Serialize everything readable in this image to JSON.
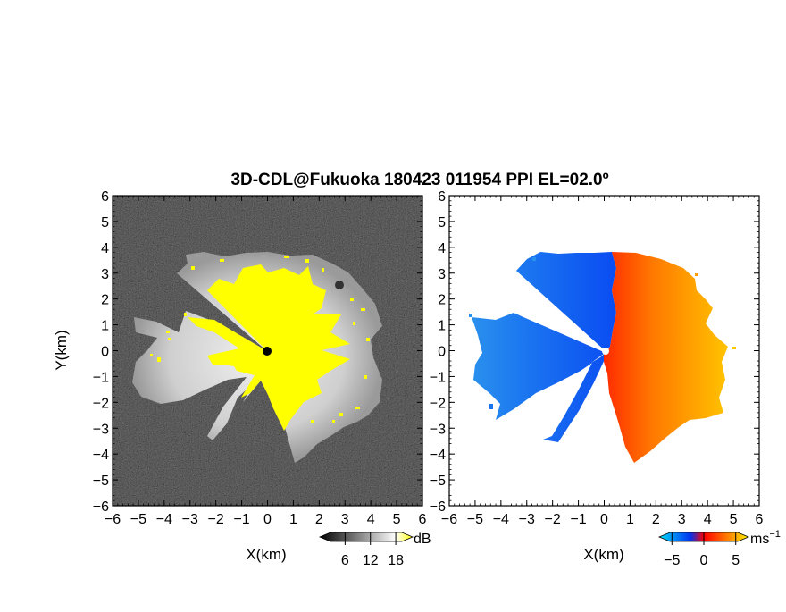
{
  "chart_data": [
    {
      "type": "heatmap",
      "title": "3D-CDL@Fukuoka 180423 011954 PPI EL=02.0º",
      "xlabel": "X(km)",
      "ylabel": "Y(km)",
      "xlim": [
        -6,
        6
      ],
      "ylim": [
        -6,
        6
      ],
      "x_ticks": [
        "−6",
        "−5",
        "−4",
        "−3",
        "−2",
        "−1",
        "0",
        "1",
        "2",
        "3",
        "4",
        "5",
        "6"
      ],
      "y_ticks": [
        "6",
        "5",
        "4",
        "3",
        "2",
        "1",
        "0",
        "−1",
        "−2",
        "−3",
        "−4",
        "−5",
        "−6"
      ],
      "colorbar": {
        "unit": "dB",
        "tick_labels": [
          "6",
          "12",
          "18"
        ],
        "tick_values": [
          6,
          12,
          18
        ],
        "range": [
          0,
          22
        ],
        "colors": [
          "#000000",
          "#ffffff",
          "#ffff00"
        ]
      },
      "colors": {
        "background": "#151515",
        "fill": "#cfcfcf",
        "high": "#ffff00"
      }
    },
    {
      "type": "heatmap",
      "xlabel": "X(km)",
      "ylabel": "",
      "xlim": [
        -6,
        6
      ],
      "ylim": [
        -6,
        6
      ],
      "x_ticks": [
        "−6",
        "−5",
        "−4",
        "−3",
        "−2",
        "−1",
        "0",
        "1",
        "2",
        "3",
        "4",
        "5",
        "6"
      ],
      "y_ticks": [
        "6",
        "5",
        "4",
        "3",
        "2",
        "1",
        "0",
        "−1",
        "−2",
        "−3",
        "−4",
        "−5",
        "−6"
      ],
      "colorbar": {
        "unit": "ms",
        "unit_exponent": "−1",
        "tick_labels": [
          "−5",
          "0",
          "5"
        ],
        "tick_values": [
          -5,
          0,
          5
        ],
        "range": [
          -7,
          7
        ],
        "colors": [
          "#0033ee",
          "#00ddff",
          "#ff0000",
          "#ffee00"
        ]
      },
      "colors": {
        "negative": "#1a6cf0",
        "positive": "#ff6a00",
        "positive_far": "#ffb000"
      }
    }
  ]
}
